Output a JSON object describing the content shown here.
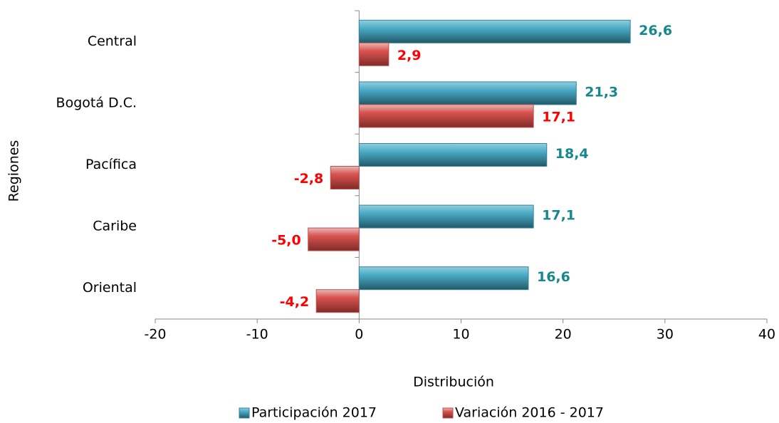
{
  "chart_data": {
    "type": "bar",
    "orientation": "horizontal",
    "x_label": "Distribución",
    "y_label": "Regiones",
    "categories": [
      "Central",
      "Bogotá D.C.",
      "Pacífica",
      "Caribe",
      "Oriental"
    ],
    "series": [
      {
        "name": "Participación 2017",
        "color": "#31859c",
        "label_color": "#16888c",
        "values": [
          26.6,
          21.3,
          18.4,
          17.1,
          16.6
        ],
        "value_labels": [
          "26,6",
          "21,3",
          "18,4",
          "17,1",
          "16,6"
        ]
      },
      {
        "name": "Variación 2016 - 2017",
        "color": "#c0504d",
        "label_color": "#ff0000",
        "values": [
          2.9,
          17.1,
          -2.8,
          -5.0,
          -4.2
        ],
        "value_labels": [
          "2,9",
          "17,1",
          "-2,8",
          "-5,0",
          "-4,2"
        ]
      }
    ],
    "xlim": [
      -20,
      40
    ],
    "xticks": [
      -20,
      -10,
      0,
      10,
      20,
      30,
      40
    ],
    "legend": "bottom"
  }
}
